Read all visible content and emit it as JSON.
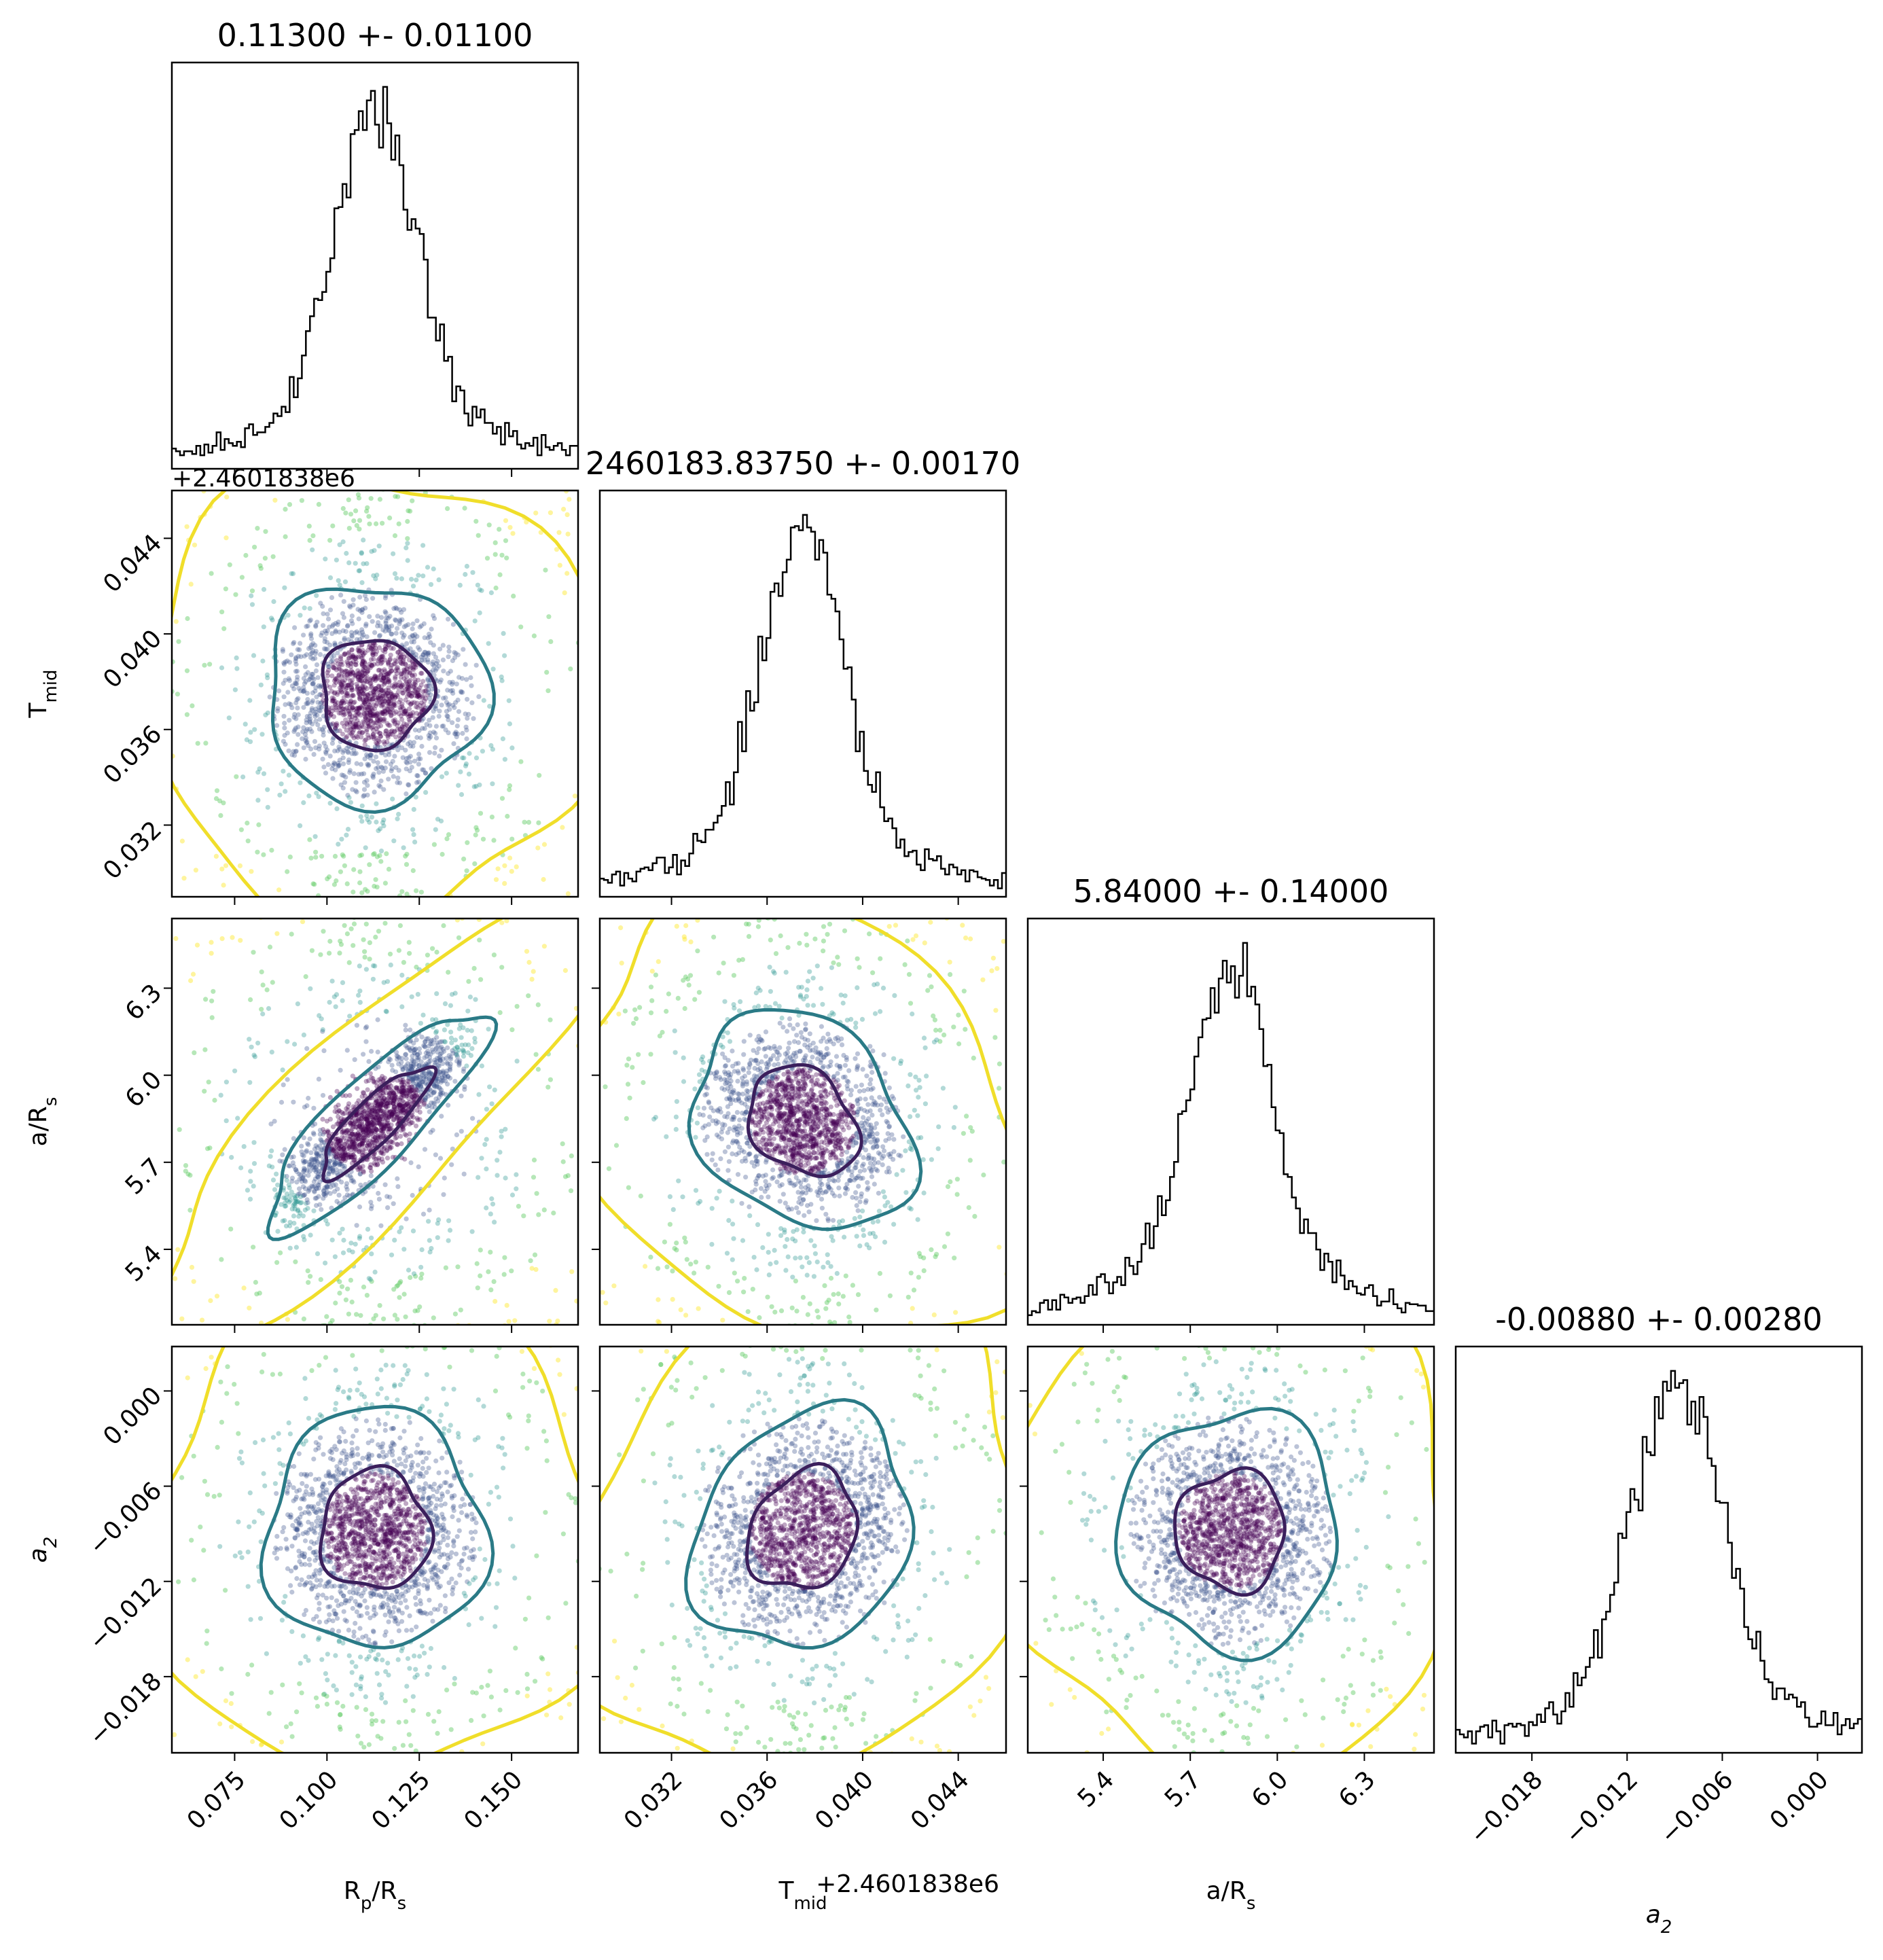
{
  "chart_data": {
    "type": "corner",
    "description_params": [
      "R_p/R_s",
      "T_mid",
      "a/R_s",
      "a_2"
    ],
    "params": [
      {
        "key": "rp",
        "title": "0.11300 +- 0.01100",
        "label": "R",
        "label_sub": "p",
        "label_tail": "/R",
        "label_sub2": "s",
        "center": 0.113,
        "width": 0.011,
        "range": [
          0.058,
          0.168
        ],
        "ticks": [
          0.075,
          0.1,
          0.125,
          0.15
        ],
        "tick_labels": [
          "0.075",
          "0.100",
          "0.125",
          "0.150"
        ]
      },
      {
        "key": "tmid",
        "title": "2460183.83750 +- 0.00170",
        "label": "T",
        "label_sub": "mid",
        "label_tail": "",
        "label_sub2": "",
        "offset_text": "+2.4601838e6",
        "center": 0.0375,
        "width": 0.0017,
        "range": [
          0.029,
          0.046
        ],
        "ticks": [
          0.032,
          0.036,
          0.04,
          0.044
        ],
        "tick_labels": [
          "0.032",
          "0.036",
          "0.040",
          "0.044"
        ]
      },
      {
        "key": "ars",
        "title": "5.84000 +- 0.14000",
        "label": "a/R",
        "label_sub": "s",
        "label_tail": "",
        "label_sub2": "",
        "center": 5.84,
        "width": 0.14,
        "range": [
          5.14,
          6.54
        ],
        "ticks": [
          5.4,
          5.7,
          6.0,
          6.3
        ],
        "tick_labels": [
          "5.4",
          "5.7",
          "6.0",
          "6.3"
        ]
      },
      {
        "key": "a2",
        "title": "-0.00880 +- 0.00280",
        "label": "a",
        "label_sub": "2",
        "label_tail": "",
        "label_sub2": "",
        "center": -0.0088,
        "width": 0.0028,
        "range": [
          -0.0228,
          0.0028
        ],
        "ticks": [
          -0.018,
          -0.012,
          -0.006,
          0.0
        ],
        "tick_labels": [
          "−0.018",
          "−0.012",
          "−0.006",
          "0.000"
        ]
      }
    ],
    "correlations": {
      "rp-ars": 0.85,
      "tmid-ars": -0.25,
      "rp-tmid": 0.0,
      "rp-a2": 0.0,
      "tmid-a2": 0.2,
      "ars-a2": 0.0
    },
    "contour_colors": [
      "#3b1f5c",
      "#2a7a86",
      "#f0de2a"
    ],
    "point_colors": [
      "#440154",
      "#3b528b",
      "#21918c",
      "#5ec962",
      "#fde725"
    ],
    "grid": false,
    "legend": "none"
  }
}
